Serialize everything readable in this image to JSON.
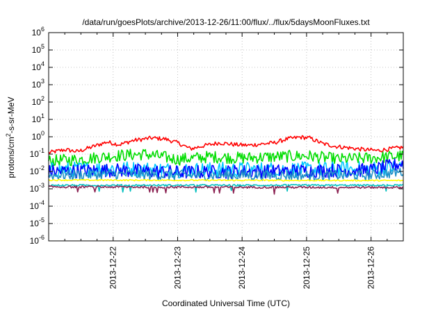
{
  "chart_data": {
    "type": "line",
    "title": "/data/run/goesPlots/archive/2013-12-26/11:00/flux/../flux/5daysMoonFluxes.txt",
    "xlabel": "Coordinated Universal Time (UTC)",
    "ylabel": {
      "prefix": "protons/cm",
      "sup": "2",
      "suffix": "-s-sr-MeV"
    },
    "y_scale": "log",
    "ylim": [
      1e-06,
      1000000.0
    ],
    "xlim": [
      0,
      5.5
    ],
    "grid": true,
    "legend": "none",
    "y_ticks": [
      {
        "exp": "-6",
        "value": 1e-06
      },
      {
        "exp": "-5",
        "value": 1e-05
      },
      {
        "exp": "-4",
        "value": 0.0001
      },
      {
        "exp": "-3",
        "value": 0.001
      },
      {
        "exp": "-2",
        "value": 0.01
      },
      {
        "exp": "-1",
        "value": 0.1
      },
      {
        "exp": "0",
        "value": 1
      },
      {
        "exp": "1",
        "value": 10.0
      },
      {
        "exp": "2",
        "value": 100.0
      },
      {
        "exp": "3",
        "value": 1000.0
      },
      {
        "exp": "4",
        "value": 10000.0
      },
      {
        "exp": "5",
        "value": 100000.0
      },
      {
        "exp": "6",
        "value": 1000000.0
      }
    ],
    "y_tick_base": "10",
    "x_ticks": [
      {
        "label": "2013-12-22",
        "x": 1
      },
      {
        "label": "2013-12-23",
        "x": 2
      },
      {
        "label": "2013-12-24",
        "x": 3
      },
      {
        "label": "2013-12-25",
        "x": 4
      },
      {
        "label": "2013-12-26",
        "x": 5
      }
    ],
    "x_note": "x values are days after 2013-12-21 00:00 UTC",
    "series": [
      {
        "color": "#ff0000",
        "anchors": [
          [
            0,
            0.12
          ],
          [
            0.25,
            0.18
          ],
          [
            0.45,
            0.14
          ],
          [
            0.7,
            0.28
          ],
          [
            0.9,
            0.5
          ],
          [
            1.1,
            0.35
          ],
          [
            1.3,
            0.6
          ],
          [
            1.6,
            0.85
          ],
          [
            1.8,
            0.75
          ],
          [
            2.0,
            0.45
          ],
          [
            2.2,
            0.2
          ],
          [
            2.4,
            0.3
          ],
          [
            2.65,
            0.45
          ],
          [
            2.9,
            0.35
          ],
          [
            3.1,
            0.32
          ],
          [
            3.3,
            0.38
          ],
          [
            3.5,
            0.45
          ],
          [
            3.7,
            0.75
          ],
          [
            3.9,
            0.95
          ],
          [
            4.05,
            0.85
          ],
          [
            4.25,
            0.4
          ],
          [
            4.45,
            0.28
          ],
          [
            4.7,
            0.22
          ],
          [
            4.9,
            0.18
          ],
          [
            5.1,
            0.16
          ],
          [
            5.3,
            0.2
          ],
          [
            5.5,
            0.25
          ]
        ],
        "noise": 0.12
      },
      {
        "color": "#00dd00",
        "anchors": [
          [
            0,
            0.04
          ],
          [
            0.5,
            0.05
          ],
          [
            1.0,
            0.08
          ],
          [
            1.5,
            0.1
          ],
          [
            2.0,
            0.05
          ],
          [
            2.5,
            0.07
          ],
          [
            3.0,
            0.06
          ],
          [
            3.5,
            0.07
          ],
          [
            4.0,
            0.08
          ],
          [
            4.5,
            0.05
          ],
          [
            5.0,
            0.06
          ],
          [
            5.5,
            0.08
          ]
        ],
        "noise": 0.35
      },
      {
        "color": "#00c8ff",
        "anchors": [
          [
            0,
            0.012
          ],
          [
            1.0,
            0.015
          ],
          [
            2.0,
            0.012
          ],
          [
            3.0,
            0.013
          ],
          [
            4.0,
            0.013
          ],
          [
            5.0,
            0.014
          ],
          [
            5.5,
            0.02
          ]
        ],
        "noise": 0.45
      },
      {
        "color": "#0000ff",
        "anchors": [
          [
            0,
            0.01
          ],
          [
            1.0,
            0.012
          ],
          [
            2.0,
            0.009
          ],
          [
            3.0,
            0.01
          ],
          [
            4.0,
            0.011
          ],
          [
            5.0,
            0.012
          ],
          [
            5.5,
            0.03
          ]
        ],
        "noise": 0.4
      },
      {
        "color": "#1e90c8",
        "anchors": [
          [
            0,
            0.006
          ],
          [
            1.0,
            0.007
          ],
          [
            2.0,
            0.006
          ],
          [
            3.0,
            0.006
          ],
          [
            4.0,
            0.006
          ],
          [
            5.0,
            0.006
          ],
          [
            5.5,
            0.01
          ]
        ],
        "noise": 0.3
      },
      {
        "color": "#ffff00",
        "anchors": [
          [
            0,
            0.0032
          ],
          [
            5.5,
            0.003
          ]
        ],
        "noise": 0.04
      },
      {
        "color": "#00bfbf",
        "anchors": [
          [
            0,
            0.0016
          ],
          [
            5.5,
            0.0016
          ]
        ],
        "noise": 0.05
      },
      {
        "color": "#8b2252",
        "anchors": [
          [
            0,
            0.0013
          ],
          [
            5.5,
            0.0012
          ]
        ],
        "noise": 0.06
      }
    ]
  }
}
